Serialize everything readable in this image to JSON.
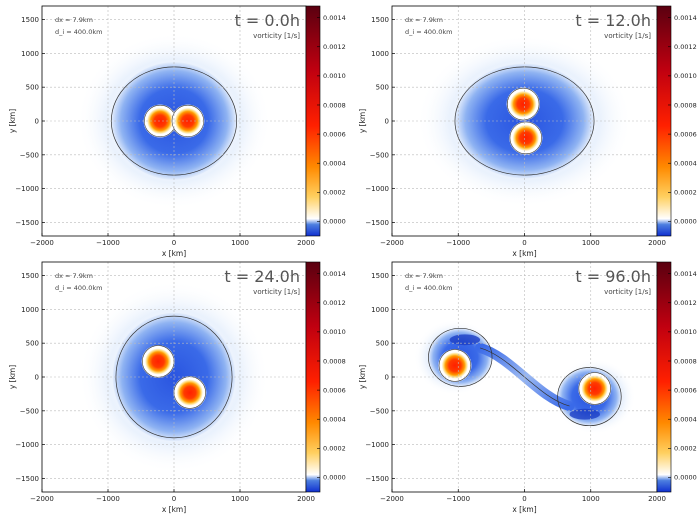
{
  "chart_data": [
    {
      "type": "heatmap",
      "title": "t = 0.0h",
      "info": [
        "dx = 7.9km",
        "d_i = 400.0km"
      ],
      "colorbar_label": "vorticity [1/s]",
      "xlabel": "x [km]",
      "ylabel": "y [km]",
      "xlim": [
        -2000,
        2000
      ],
      "ylim": [
        -1700,
        1700
      ],
      "xticks": [
        "−2000",
        "−1000",
        "0",
        "1000",
        "2000"
      ],
      "yticks": [
        "1500",
        "1000",
        "500",
        "0",
        "−500",
        "−1000",
        "−1500"
      ],
      "cbar_ticks": [
        "0.0000",
        "0.0002",
        "0.0004",
        "0.0006",
        "0.0008",
        "0.0010",
        "0.0012",
        "0.0014"
      ],
      "cbar_range": [
        -0.0001,
        0.00148
      ],
      "vortices": [
        {
          "x": -210,
          "y": 0,
          "peak": 0.001
        },
        {
          "x": 210,
          "y": 0,
          "peak": 0.001
        }
      ],
      "negative_region": {
        "cx": 0,
        "cy": 0,
        "rx": 950,
        "ry": 870
      },
      "zero_contour": {
        "cx": 0,
        "cy": 0,
        "rx": 950,
        "ry": 800
      }
    },
    {
      "type": "heatmap",
      "title": "t = 12.0h",
      "info": [
        "dx = 7.9km",
        "d_i = 400.0km"
      ],
      "colorbar_label": "vorticity [1/s]",
      "xlabel": "x [km]",
      "ylabel": "y [km]",
      "xlim": [
        -2000,
        2000
      ],
      "ylim": [
        -1700,
        1700
      ],
      "xticks": [
        "−2000",
        "−1000",
        "0",
        "1000",
        "2000"
      ],
      "yticks": [
        "1500",
        "1000",
        "500",
        "0",
        "−500",
        "−1000",
        "−1500"
      ],
      "cbar_ticks": [
        "0.0000",
        "0.0002",
        "0.0004",
        "0.0006",
        "0.0008",
        "0.0010",
        "0.0012",
        "0.0014"
      ],
      "cbar_range": [
        -0.0001,
        0.00148
      ],
      "vortices": [
        {
          "x": -20,
          "y": 250,
          "peak": 0.001
        },
        {
          "x": 20,
          "y": -250,
          "peak": 0.001
        }
      ],
      "negative_region": {
        "cx": 0,
        "cy": 0,
        "rx": 1050,
        "ry": 850
      },
      "zero_contour": {
        "cx": 0,
        "cy": 0,
        "rx": 1050,
        "ry": 800
      }
    },
    {
      "type": "heatmap",
      "title": "t = 24.0h",
      "info": [
        "dx = 7.9km",
        "d_i = 400.0km"
      ],
      "colorbar_label": "vorticity [1/s]",
      "xlabel": "x [km]",
      "ylabel": "y [km]",
      "xlim": [
        -2000,
        2000
      ],
      "ylim": [
        -1700,
        1700
      ],
      "xticks": [
        "−2000",
        "−1000",
        "0",
        "1000",
        "2000"
      ],
      "yticks": [
        "1500",
        "1000",
        "500",
        "0",
        "−500",
        "−1000",
        "−1500"
      ],
      "cbar_ticks": [
        "0.0000",
        "0.0002",
        "0.0004",
        "0.0006",
        "0.0008",
        "0.0010",
        "0.0012",
        "0.0014"
      ],
      "cbar_range": [
        -0.0001,
        0.00148
      ],
      "vortices": [
        {
          "x": -240,
          "y": 230,
          "peak": 0.001
        },
        {
          "x": 240,
          "y": -230,
          "peak": 0.001
        }
      ],
      "negative_region": {
        "cx": 0,
        "cy": 0,
        "rx": 930,
        "ry": 950
      },
      "zero_contour": {
        "cx": 0,
        "cy": 0,
        "rx": 880,
        "ry": 900
      }
    },
    {
      "type": "heatmap",
      "title": "t = 96.0h",
      "info": [
        "dx = 7.9km",
        "d_i = 400.0km"
      ],
      "colorbar_label": "vorticity [1/s]",
      "xlabel": "x [km]",
      "ylabel": "y [km]",
      "xlim": [
        -2000,
        2000
      ],
      "ylim": [
        -1700,
        1700
      ],
      "xticks": [
        "−2000",
        "−1000",
        "0",
        "1000",
        "2000"
      ],
      "yticks": [
        "1500",
        "1000",
        "500",
        "0",
        "−500",
        "−1000",
        "−1500"
      ],
      "cbar_ticks": [
        "0.0000",
        "0.0002",
        "0.0004",
        "0.0006",
        "0.0008",
        "0.0010",
        "0.0012",
        "0.0014"
      ],
      "cbar_range": [
        -0.0001,
        0.00148
      ],
      "vortices": [
        {
          "x": -1050,
          "y": 170,
          "peak": 0.001
        },
        {
          "x": 1060,
          "y": -170,
          "peak": 0.001
        }
      ],
      "negative_region": null,
      "zero_contour": null
    }
  ]
}
